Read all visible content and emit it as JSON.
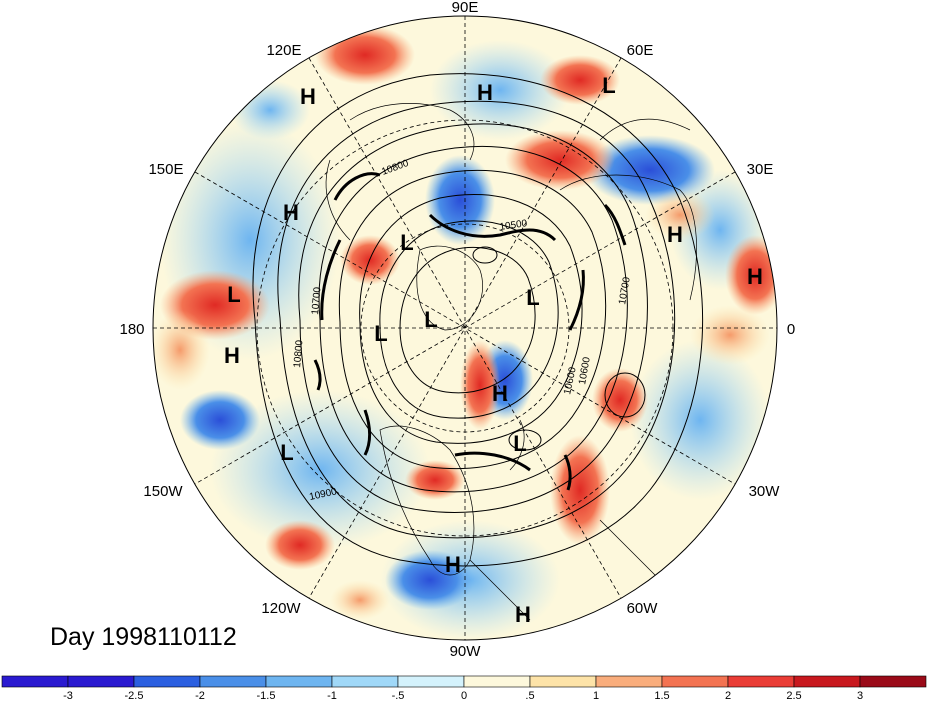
{
  "title": "Day 1998110112",
  "projection": "north-polar-stereographic",
  "longitude_labels": [
    "90E",
    "60E",
    "30E",
    "0",
    "30W",
    "60W",
    "90W",
    "120W",
    "150W",
    "180",
    "150E",
    "120E"
  ],
  "contour_labels": [
    "10500",
    "10600",
    "10700",
    "10800",
    "10800",
    "10900",
    "10600",
    "10700"
  ],
  "pressure_centers": [
    {
      "type": "H"
    },
    {
      "type": "H"
    },
    {
      "type": "L"
    },
    {
      "type": "H"
    },
    {
      "type": "L"
    },
    {
      "type": "H"
    },
    {
      "type": "H"
    },
    {
      "type": "L"
    },
    {
      "type": "L"
    },
    {
      "type": "L"
    },
    {
      "type": "L"
    },
    {
      "type": "H"
    },
    {
      "type": "H"
    },
    {
      "type": "L"
    },
    {
      "type": "L"
    },
    {
      "type": "H"
    },
    {
      "type": "H"
    }
  ],
  "colorbar": {
    "tick_labels": [
      "-3",
      "-2.5",
      "-2",
      "-1.5",
      "-1",
      "-.5",
      "0",
      ".5",
      "1",
      "1.5",
      "2",
      "2.5",
      "3"
    ],
    "colors": [
      "#2a1ad0",
      "#2b5fe0",
      "#4a8fe8",
      "#6eb5f0",
      "#a0d8f8",
      "#d4f2fc",
      "#fdf8dc",
      "#fde3a8",
      "#f9ad7c",
      "#f37352",
      "#ea3d36",
      "#c8181e",
      "#9a0a18"
    ]
  }
}
